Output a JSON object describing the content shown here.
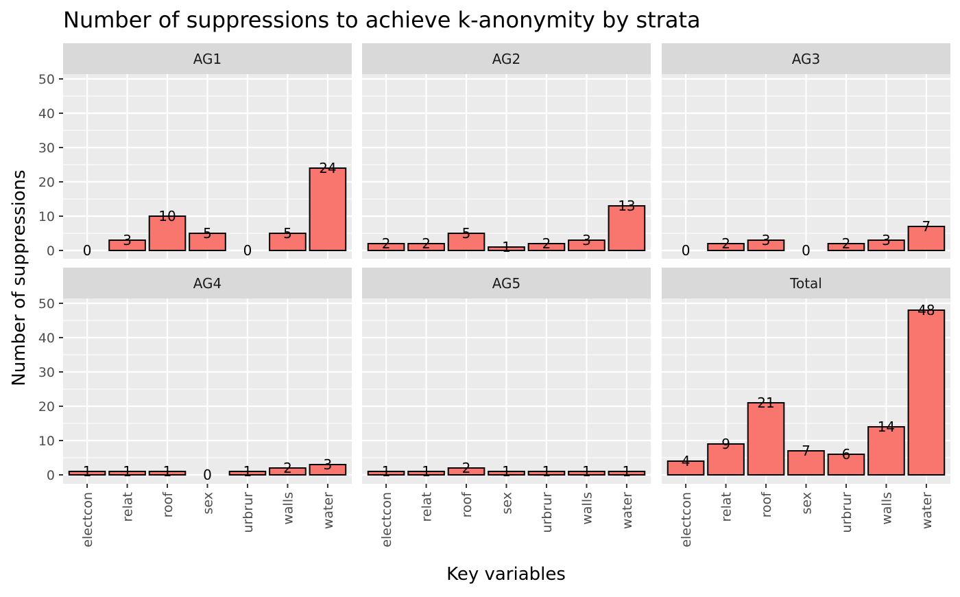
{
  "chart_data": {
    "type": "bar",
    "title": "Number of suppressions to achieve k-anonymity by strata",
    "xlabel": "Key variables",
    "ylabel": "Number of suppressions",
    "ylim": [
      0,
      50
    ],
    "yticks": [
      0,
      10,
      20,
      30,
      40,
      50
    ],
    "grid": true,
    "categories": [
      "electcon",
      "relat",
      "roof",
      "sex",
      "urbrur",
      "walls",
      "water"
    ],
    "colors": {
      "bar_fill": "#F8766D",
      "bar_stroke": "#000000",
      "panel_bg": "#EBEBEB",
      "strip_bg": "#D9D9D9",
      "grid": "#FFFFFF"
    },
    "facets": [
      {
        "strip": "AG1",
        "values": [
          0,
          3,
          10,
          5,
          0,
          5,
          24
        ]
      },
      {
        "strip": "AG2",
        "values": [
          2,
          2,
          5,
          1,
          2,
          3,
          13
        ]
      },
      {
        "strip": "AG3",
        "values": [
          0,
          2,
          3,
          0,
          2,
          3,
          7
        ]
      },
      {
        "strip": "AG4",
        "values": [
          1,
          1,
          1,
          0,
          1,
          2,
          3
        ]
      },
      {
        "strip": "AG5",
        "values": [
          1,
          1,
          2,
          1,
          1,
          1,
          1
        ]
      },
      {
        "strip": "Total",
        "values": [
          4,
          9,
          21,
          7,
          6,
          14,
          48
        ]
      }
    ]
  }
}
